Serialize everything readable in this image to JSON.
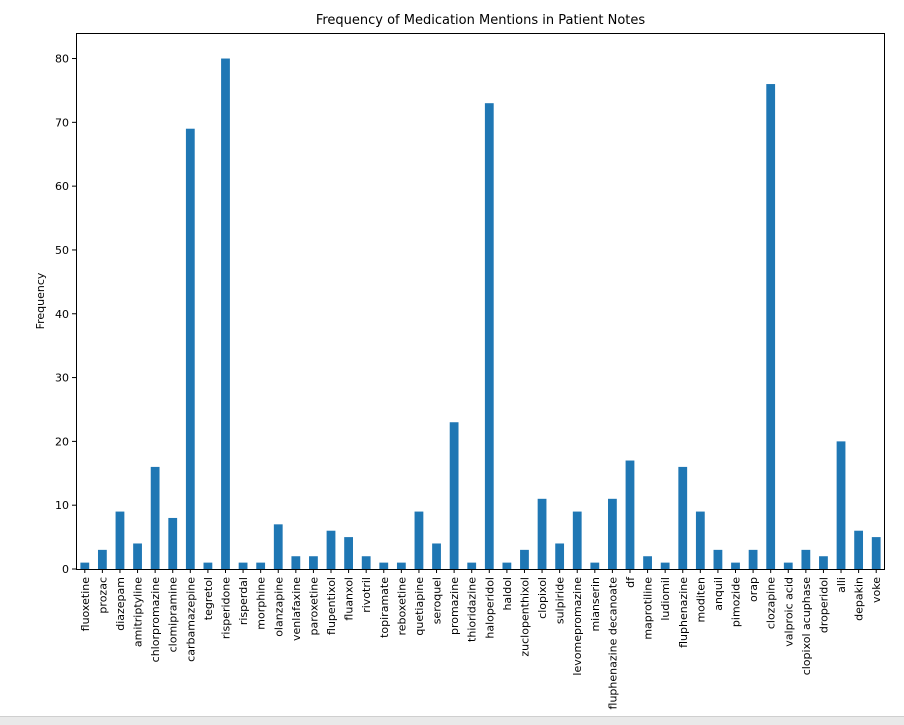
{
  "chart_data": {
    "type": "bar",
    "title": "Frequency of Medication Mentions in Patient Notes",
    "xlabel": "",
    "ylabel": "Frequency",
    "ylim": [
      0,
      84
    ],
    "yticks": [
      0,
      10,
      20,
      30,
      40,
      50,
      60,
      70,
      80
    ],
    "grid": false,
    "legend": "none",
    "bar_color": "#1f77b4",
    "categories": [
      "fluoxetine",
      "prozac",
      "diazepam",
      "amitriptyline",
      "chlorpromazine",
      "clomipramine",
      "carbamazepine",
      "tegretol",
      "risperidone",
      "risperdal",
      "morphine",
      "olanzapine",
      "venlafaxine",
      "paroxetine",
      "flupentixol",
      "fluanxol",
      "rivotril",
      "topiramate",
      "reboxetine",
      "quetiapine",
      "seroquel",
      "promazine",
      "thioridazine",
      "haloperidol",
      "haldol",
      "zuclopenthixol",
      "clopixol",
      "sulpiride",
      "levomepromazine",
      "mianserin",
      "fluphenazine decanoate",
      "df",
      "maprotiline",
      "ludiomil",
      "fluphenazine",
      "moditen",
      "anquil",
      "pimozide",
      "orap",
      "clozapine",
      "valproic acid",
      "clopixol acuphase",
      "droperidol",
      "alli",
      "depakin",
      "voke"
    ],
    "values": [
      1,
      3,
      9,
      4,
      16,
      8,
      69,
      1,
      80,
      1,
      1,
      7,
      2,
      2,
      6,
      5,
      2,
      1,
      1,
      9,
      4,
      23,
      1,
      73,
      1,
      3,
      11,
      4,
      9,
      1,
      11,
      17,
      2,
      1,
      16,
      9,
      3,
      1,
      3,
      76,
      1,
      3,
      2,
      20,
      6,
      5
    ]
  }
}
